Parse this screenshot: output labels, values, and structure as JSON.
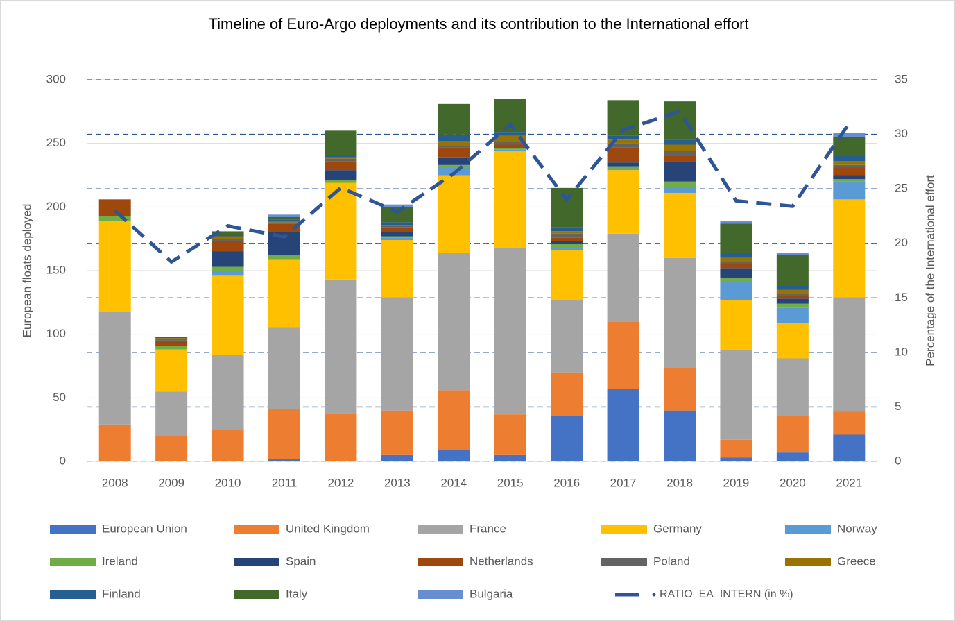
{
  "chart_data": {
    "type": "bar",
    "title": "Timeline of Euro-Argo deployments and its contribution to the International effort",
    "ylabel": "European floats deployed",
    "y2label": "Percentage of the International effort",
    "categories": [
      "2008",
      "2009",
      "2010",
      "2011",
      "2012",
      "2013",
      "2014",
      "2015",
      "2016",
      "2017",
      "2018",
      "2019",
      "2020",
      "2021"
    ],
    "ylim": [
      0,
      300
    ],
    "yticks": [
      0,
      50,
      100,
      150,
      200,
      250,
      300
    ],
    "y2lim": [
      0,
      35
    ],
    "y2ticks": [
      0,
      5,
      10,
      15,
      20,
      25,
      30,
      35
    ],
    "grid": true,
    "legend": "bottom",
    "series": [
      {
        "name": "European Union",
        "color": "#4472c4",
        "values": [
          0,
          0,
          0,
          2,
          0,
          5,
          9,
          5,
          36,
          57,
          40,
          3,
          7,
          21
        ]
      },
      {
        "name": "United Kingdom",
        "color": "#ed7d31",
        "values": [
          29,
          20,
          25,
          39,
          38,
          35,
          47,
          32,
          34,
          53,
          34,
          14,
          29,
          18
        ]
      },
      {
        "name": "France",
        "color": "#a5a5a5",
        "values": [
          89,
          35,
          59,
          64,
          105,
          89,
          108,
          131,
          57,
          69,
          86,
          71,
          45,
          90
        ]
      },
      {
        "name": "Germany",
        "color": "#ffc000",
        "values": [
          71,
          33,
          62,
          54,
          76,
          45,
          61,
          76,
          39,
          50,
          51,
          39,
          28,
          77
        ]
      },
      {
        "name": "Norway",
        "color": "#5b9bd5",
        "values": [
          0,
          0,
          4,
          0,
          0,
          2,
          6,
          1,
          2,
          1,
          5,
          14,
          12,
          14
        ]
      },
      {
        "name": "Ireland",
        "color": "#70ad47",
        "values": [
          4,
          3,
          3,
          3,
          2,
          1,
          2,
          1,
          3,
          2,
          4,
          3,
          3,
          2
        ]
      },
      {
        "name": "Spain",
        "color": "#264478",
        "values": [
          0,
          0,
          12,
          18,
          8,
          3,
          6,
          1,
          2,
          3,
          16,
          8,
          4,
          3
        ]
      },
      {
        "name": "Netherlands",
        "color": "#9e480e",
        "values": [
          13,
          4,
          8,
          7,
          7,
          4,
          8,
          2,
          3,
          12,
          4,
          3,
          2,
          6
        ]
      },
      {
        "name": "Poland",
        "color": "#636363",
        "values": [
          0,
          1,
          2,
          1,
          2,
          1,
          1,
          2,
          3,
          3,
          4,
          2,
          2,
          2
        ]
      },
      {
        "name": "Greece",
        "color": "#997300",
        "values": [
          0,
          1,
          2,
          1,
          1,
          1,
          4,
          5,
          2,
          3,
          5,
          3,
          3,
          3
        ]
      },
      {
        "name": "Finland",
        "color": "#255e91",
        "values": [
          0,
          1,
          1,
          1,
          2,
          2,
          5,
          3,
          3,
          3,
          4,
          4,
          3,
          4
        ]
      },
      {
        "name": "Italy",
        "color": "#43682b",
        "values": [
          0,
          0,
          2,
          2,
          19,
          12,
          24,
          26,
          31,
          28,
          30,
          23,
          24,
          15
        ]
      },
      {
        "name": "Bulgaria",
        "color": "#698ed0",
        "values": [
          0,
          0,
          1,
          2,
          0,
          2,
          0,
          0,
          0,
          0,
          0,
          2,
          2,
          3
        ]
      },
      {
        "name": "RATIO_EA_INTERN (in %)",
        "color": "#2f5597",
        "type": "line",
        "axis": "y2",
        "values": [
          23,
          18.3,
          21.6,
          20.6,
          25.1,
          22.9,
          26.4,
          30.9,
          24,
          30.4,
          32.1,
          23.9,
          23.4,
          31
        ]
      }
    ]
  }
}
